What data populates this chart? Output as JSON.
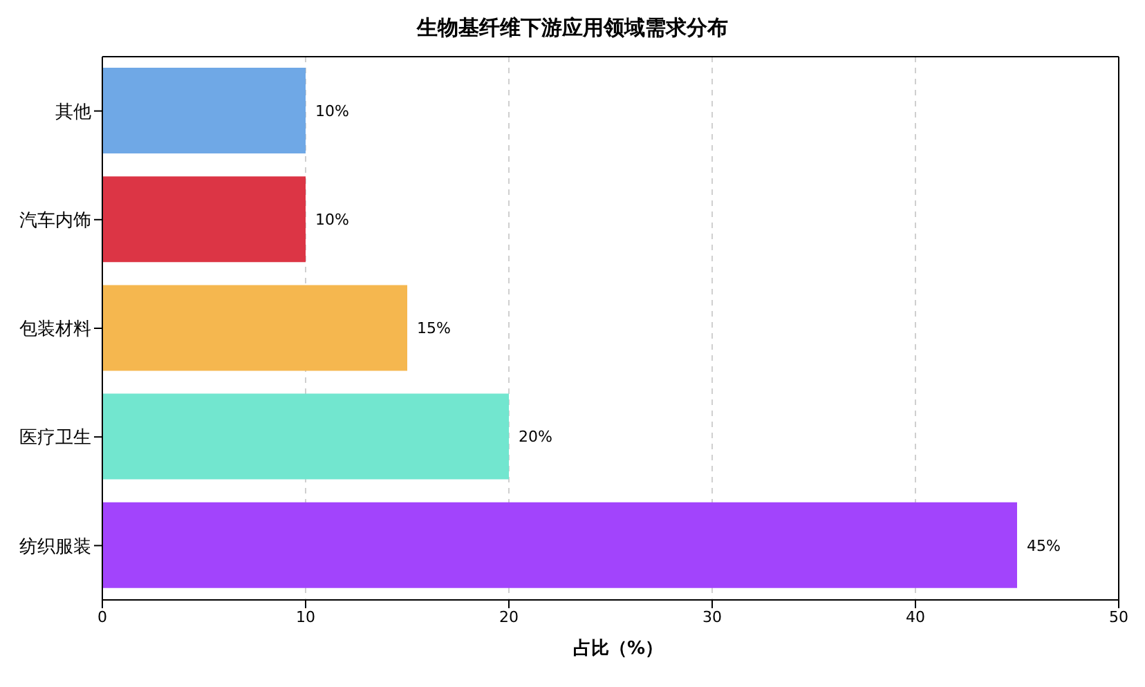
{
  "chart_data": {
    "type": "bar",
    "orientation": "horizontal",
    "title": "生物基纤维下游应用领域需求分布",
    "xlabel": "占比（%）",
    "categories": [
      "其他",
      "汽车内饰",
      "包装材料",
      "医疗卫生",
      "纺织服装"
    ],
    "values": [
      10,
      10,
      15,
      20,
      45
    ],
    "colors": [
      "#6fa8e6",
      "#dc3545",
      "#f5b74f",
      "#72e6cf",
      "#a244fc"
    ],
    "value_labels": [
      "10%",
      "10%",
      "15%",
      "20%",
      "45%"
    ],
    "xlim": [
      0,
      50
    ],
    "xticks": [
      0,
      10,
      20,
      30,
      40,
      50
    ],
    "grid": "x"
  }
}
